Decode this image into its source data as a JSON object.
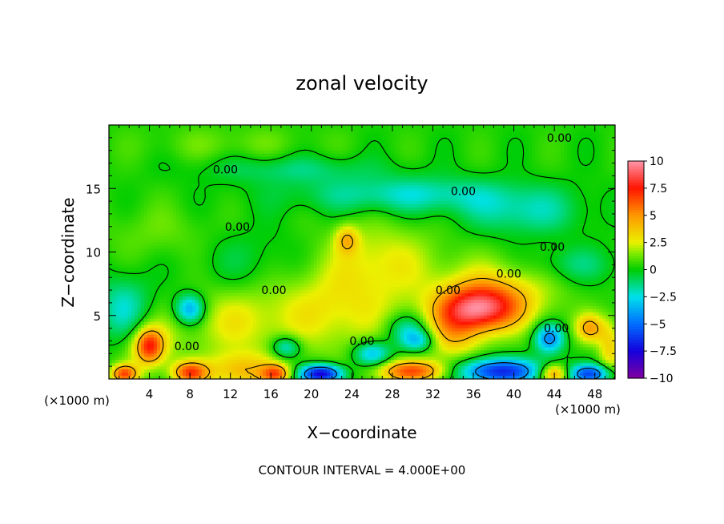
{
  "chart_data": {
    "type": "heatmap",
    "title": "zonal velocity",
    "xlabel": "X−coordinate",
    "ylabel": "Z−coordinate",
    "x_unit_left": "(×1000 m)",
    "x_unit_right": "(×1000 m)",
    "footer": "CONTOUR INTERVAL = 4.000E+00",
    "xlim": [
      0,
      50
    ],
    "ylim": [
      0,
      20
    ],
    "x_ticks": [
      4,
      8,
      12,
      16,
      20,
      24,
      28,
      32,
      36,
      40,
      44,
      48
    ],
    "x_tick_labels": [
      "4",
      "8",
      "12",
      "16",
      "20",
      "24",
      "28",
      "32",
      "36",
      "40",
      "44",
      "48"
    ],
    "y_ticks": [
      5,
      10,
      15
    ],
    "y_tick_labels": [
      "5",
      "10",
      "15"
    ],
    "colorbar": {
      "range": [
        -10,
        10
      ],
      "ticks": [
        10,
        7.5,
        5,
        2.5,
        0,
        -2.5,
        -5,
        -7.5,
        -10
      ],
      "tick_labels": [
        "10",
        "7.5",
        "5",
        "2.5",
        "0",
        "−2.5",
        "−5",
        "−7.5",
        "−10"
      ]
    },
    "contour_labels": [
      {
        "text": "0.00",
        "x": 44.5,
        "y": 19.0
      },
      {
        "text": "0.00",
        "x": 11.5,
        "y": 16.5
      },
      {
        "text": "0.00",
        "x": 35.0,
        "y": 14.8
      },
      {
        "text": "0.00",
        "x": 12.7,
        "y": 12.0
      },
      {
        "text": "0.00",
        "x": 43.8,
        "y": 10.4
      },
      {
        "text": "0.00",
        "x": 39.5,
        "y": 8.3
      },
      {
        "text": "0.00",
        "x": 16.3,
        "y": 7.0
      },
      {
        "text": "0.00",
        "x": 33.5,
        "y": 7.0
      },
      {
        "text": "0.00",
        "x": 44.2,
        "y": 4.0
      },
      {
        "text": "0.00",
        "x": 7.7,
        "y": 2.6
      },
      {
        "text": "0.00",
        "x": 25.0,
        "y": 3.0
      }
    ],
    "features": [
      {
        "x": 36.5,
        "y": 5.5,
        "value": 6.5,
        "sx": 2.6,
        "sy": 1.2
      },
      {
        "x": 38.0,
        "y": 6.5,
        "value": 3.5,
        "sx": 4.0,
        "sy": 1.8
      },
      {
        "x": 8.0,
        "y": 5.5,
        "value": -4.5,
        "sx": 1.0,
        "sy": 0.8
      },
      {
        "x": 4.0,
        "y": 2.6,
        "value": 5.0,
        "sx": 0.9,
        "sy": 0.9
      },
      {
        "x": 4.0,
        "y": 2.6,
        "value": 2.5,
        "sx": 1.8,
        "sy": 1.5
      },
      {
        "x": 8.0,
        "y": 0.5,
        "value": 6.0,
        "sx": 1.2,
        "sy": 0.6
      },
      {
        "x": 1.5,
        "y": 0.4,
        "value": 6.0,
        "sx": 0.9,
        "sy": 0.5
      },
      {
        "x": 13.0,
        "y": 0.6,
        "value": 3.5,
        "sx": 2.5,
        "sy": 1.0
      },
      {
        "x": 16.5,
        "y": 0.4,
        "value": 5.0,
        "sx": 1.0,
        "sy": 0.5
      },
      {
        "x": 21.0,
        "y": 0.4,
        "value": -8.5,
        "sx": 1.5,
        "sy": 0.5
      },
      {
        "x": 30.0,
        "y": 0.6,
        "value": 6.0,
        "sx": 2.5,
        "sy": 0.6
      },
      {
        "x": 26.0,
        "y": 2.0,
        "value": -4.0,
        "sx": 1.3,
        "sy": 0.7
      },
      {
        "x": 17.5,
        "y": 2.5,
        "value": -3.5,
        "sx": 1.0,
        "sy": 0.6
      },
      {
        "x": 30.5,
        "y": 3.0,
        "value": -3.5,
        "sx": 1.2,
        "sy": 0.6
      },
      {
        "x": 29.5,
        "y": 4.0,
        "value": -2.5,
        "sx": 1.5,
        "sy": 0.8
      },
      {
        "x": 38.5,
        "y": 0.6,
        "value": -7.0,
        "sx": 3.0,
        "sy": 0.7
      },
      {
        "x": 43.5,
        "y": 3.2,
        "value": -5.0,
        "sx": 1.0,
        "sy": 0.8
      },
      {
        "x": 44.0,
        "y": 0.4,
        "value": 5.0,
        "sx": 1.0,
        "sy": 0.5
      },
      {
        "x": 47.5,
        "y": 0.4,
        "value": -6.0,
        "sx": 1.5,
        "sy": 0.5
      },
      {
        "x": 47.5,
        "y": 4.0,
        "value": 4.0,
        "sx": 1.0,
        "sy": 0.8
      },
      {
        "x": 49.5,
        "y": 2.5,
        "value": 3.0,
        "sx": 0.8,
        "sy": 1.5
      },
      {
        "x": 22.0,
        "y": 5.5,
        "value": 2.5,
        "sx": 5.0,
        "sy": 2.5
      },
      {
        "x": 27.0,
        "y": 9.5,
        "value": 2.0,
        "sx": 4.0,
        "sy": 2.0
      },
      {
        "x": 23.5,
        "y": 11.0,
        "value": 3.0,
        "sx": 0.8,
        "sy": 0.8
      },
      {
        "x": 12.0,
        "y": 4.5,
        "value": 2.0,
        "sx": 3.5,
        "sy": 2.0
      },
      {
        "x": 34.0,
        "y": 3.5,
        "value": 3.0,
        "sx": 2.0,
        "sy": 1.5
      },
      {
        "x": 1.5,
        "y": 5.5,
        "value": -2.5,
        "sx": 1.8,
        "sy": 1.8
      },
      {
        "x": 14.0,
        "y": 9.0,
        "value": -1.0,
        "sx": 4.0,
        "sy": 2.0
      },
      {
        "x": 30.0,
        "y": 14.5,
        "value": -2.5,
        "sx": 8.0,
        "sy": 1.0
      },
      {
        "x": 41.0,
        "y": 13.0,
        "value": -2.0,
        "sx": 4.0,
        "sy": 1.2
      },
      {
        "x": 18.0,
        "y": 16.5,
        "value": -1.5,
        "sx": 6.0,
        "sy": 0.8
      },
      {
        "x": 46.0,
        "y": 9.0,
        "value": -1.5,
        "sx": 3.0,
        "sy": 1.0
      },
      {
        "x": 5.0,
        "y": 11.5,
        "value": 0.8,
        "sx": 4.0,
        "sy": 1.5
      },
      {
        "x": 12.0,
        "y": 18.5,
        "value": 0.8,
        "sx": 6.0,
        "sy": 1.0
      }
    ]
  }
}
